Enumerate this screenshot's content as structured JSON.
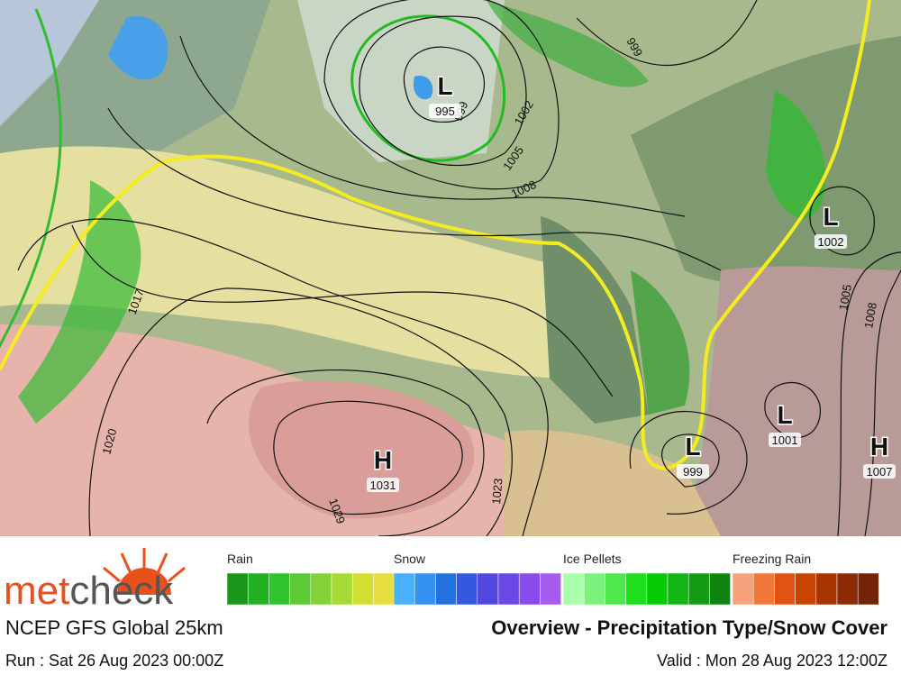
{
  "map": {
    "centers": [
      {
        "label": "L",
        "value": "995"
      },
      {
        "label": "L",
        "value": "1002"
      },
      {
        "label": "L",
        "value": "1001"
      },
      {
        "label": "L",
        "value": "999"
      },
      {
        "label": "H",
        "value": "1031"
      },
      {
        "label": "H",
        "value": "1007"
      }
    ],
    "isobar_labels": [
      "999",
      "999",
      "1002",
      "1005",
      "1008",
      "1017",
      "1020",
      "1029",
      "1023",
      "1005",
      "1008"
    ]
  },
  "brand": {
    "first": "met",
    "second": "check"
  },
  "legend": [
    {
      "label": "Rain",
      "colors": [
        "#1a961a",
        "#21b021",
        "#2fc42f",
        "#5cc935",
        "#84d23a",
        "#a8da36",
        "#d2df30",
        "#e6dd40"
      ]
    },
    {
      "label": "Snow",
      "colors": [
        "#48b0ff",
        "#3592f0",
        "#2472e0",
        "#3458e0",
        "#5048e0",
        "#6a48e6",
        "#8a4cec",
        "#a85cee"
      ]
    },
    {
      "label": "Ice Pellets",
      "colors": [
        "#aaffaa",
        "#7cf27c",
        "#4ee84e",
        "#1ede1e",
        "#06cc06",
        "#14b414",
        "#149a14",
        "#108410"
      ]
    },
    {
      "label": "Freezing Rain",
      "colors": [
        "#f7a27a",
        "#f07838",
        "#e05412",
        "#c84404",
        "#a83404",
        "#8c2c06",
        "#742406"
      ]
    }
  ],
  "footer": {
    "model": "NCEP GFS Global 25km",
    "title": "Overview - Precipitation Type/Snow Cover",
    "run": "Run : Sat 26 Aug 2023 00:00Z",
    "valid": "Valid : Mon 28 Aug 2023 12:00Z"
  }
}
